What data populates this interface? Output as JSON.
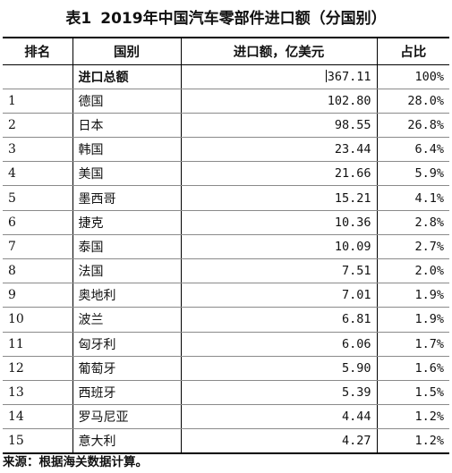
{
  "title": {
    "prefix": "表1",
    "text": "2019年中国汽车零部件进口额（分国别）"
  },
  "headers": {
    "rank": "排名",
    "country": "国别",
    "amount": "进口额，亿美元",
    "share": "占比"
  },
  "total": {
    "label": "进口总额",
    "amount": "367.11",
    "share": "100%"
  },
  "rows": [
    {
      "rank": "1",
      "country": "德国",
      "amount": "102.80",
      "share": "28.0%"
    },
    {
      "rank": "2",
      "country": "日本",
      "amount": "98.55",
      "share": "26.8%"
    },
    {
      "rank": "3",
      "country": "韩国",
      "amount": "23.44",
      "share": "6.4%"
    },
    {
      "rank": "4",
      "country": "美国",
      "amount": "21.66",
      "share": "5.9%"
    },
    {
      "rank": "5",
      "country": "墨西哥",
      "amount": "15.21",
      "share": "4.1%"
    },
    {
      "rank": "6",
      "country": "捷克",
      "amount": "10.36",
      "share": "2.8%"
    },
    {
      "rank": "7",
      "country": "泰国",
      "amount": "10.09",
      "share": "2.7%"
    },
    {
      "rank": "8",
      "country": "法国",
      "amount": "7.51",
      "share": "2.0%"
    },
    {
      "rank": "9",
      "country": "奥地利",
      "amount": "7.01",
      "share": "1.9%"
    },
    {
      "rank": "10",
      "country": "波兰",
      "amount": "6.81",
      "share": "1.9%"
    },
    {
      "rank": "11",
      "country": "匈牙利",
      "amount": "6.06",
      "share": "1.7%"
    },
    {
      "rank": "12",
      "country": "葡萄牙",
      "amount": "5.90",
      "share": "1.6%"
    },
    {
      "rank": "13",
      "country": "西班牙",
      "amount": "5.39",
      "share": "1.5%"
    },
    {
      "rank": "14",
      "country": "罗马尼亚",
      "amount": "4.44",
      "share": "1.2%"
    },
    {
      "rank": "15",
      "country": "意大利",
      "amount": "4.27",
      "share": "1.2%"
    }
  ],
  "source": "来源：根据海关数据计算。"
}
